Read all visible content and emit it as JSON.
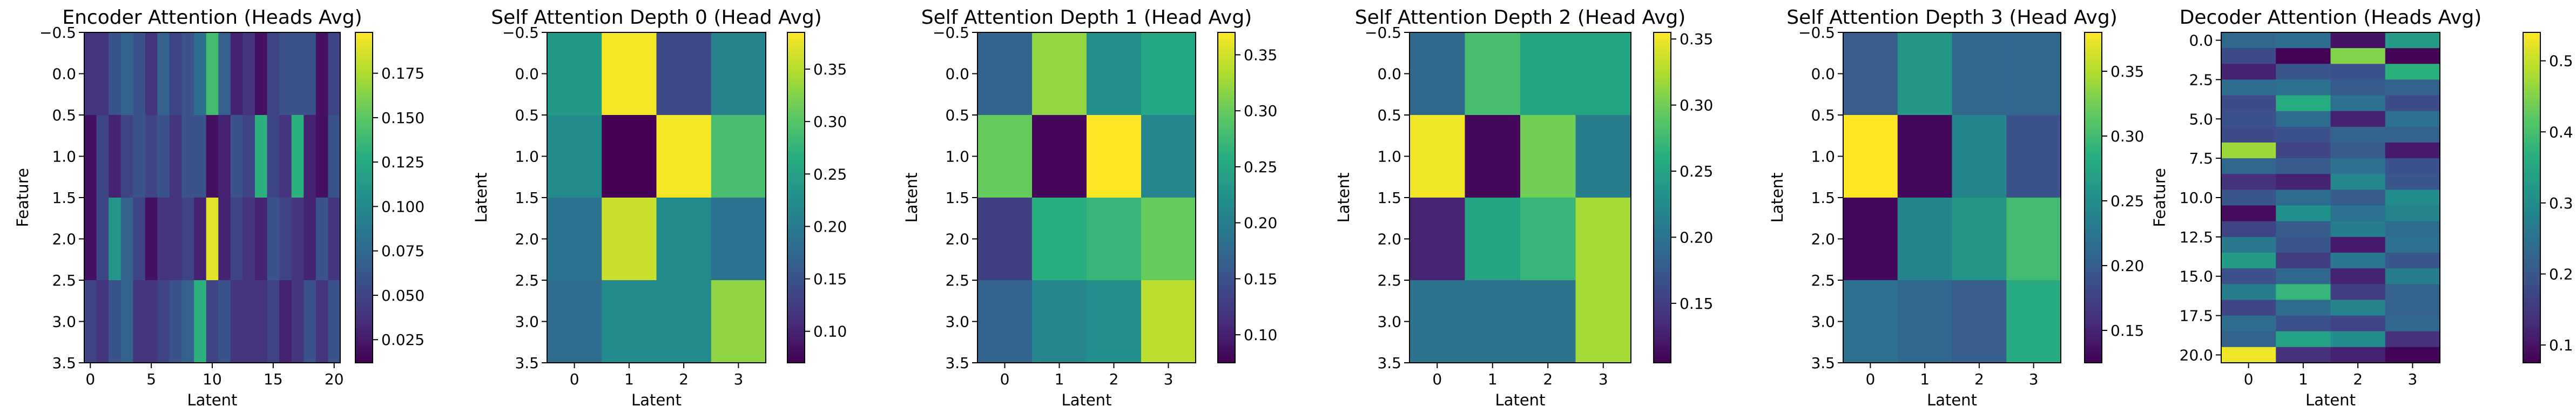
{
  "colormap": "viridis",
  "chart_data": [
    {
      "type": "heatmap",
      "title": "Encoder Attention (Heads Avg)",
      "xlabel": "Latent",
      "ylabel": "Feature",
      "x_extent": [
        -0.5,
        20.5
      ],
      "y_extent": [
        -0.5,
        3.5
      ],
      "x_ticks": [
        0,
        5,
        10,
        15,
        20
      ],
      "x_tick_labels": [
        "0",
        "5",
        "10",
        "15",
        "20"
      ],
      "y_ticks": [
        -0.5,
        0.0,
        0.5,
        1.0,
        1.5,
        2.0,
        2.5,
        3.0,
        3.5
      ],
      "y_tick_labels": [
        "−0.5",
        "0.0",
        "0.5",
        "1.0",
        "1.5",
        "2.0",
        "2.5",
        "3.0",
        "3.5"
      ],
      "colorbar_range": [
        0.012,
        0.198
      ],
      "colorbar_ticks": [
        0.025,
        0.05,
        0.075,
        0.1,
        0.125,
        0.15,
        0.175
      ],
      "colorbar_tick_labels": [
        "0.025",
        "0.050",
        "0.075",
        "0.100",
        "0.125",
        "0.150",
        "0.175"
      ],
      "values": [
        [
          0.04,
          0.04,
          0.06,
          0.07,
          0.06,
          0.04,
          0.07,
          0.05,
          0.06,
          0.08,
          0.14,
          0.07,
          0.03,
          0.04,
          0.02,
          0.05,
          0.06,
          0.06,
          0.06,
          0.02,
          0.05
        ],
        [
          0.02,
          0.05,
          0.03,
          0.05,
          0.06,
          0.05,
          0.06,
          0.04,
          0.06,
          0.06,
          0.02,
          0.03,
          0.06,
          0.05,
          0.13,
          0.05,
          0.04,
          0.13,
          0.03,
          0.02,
          0.06
        ],
        [
          0.02,
          0.05,
          0.11,
          0.07,
          0.05,
          0.02,
          0.04,
          0.04,
          0.05,
          0.03,
          0.19,
          0.03,
          0.05,
          0.04,
          0.03,
          0.06,
          0.05,
          0.04,
          0.03,
          0.06,
          0.04
        ],
        [
          0.05,
          0.04,
          0.06,
          0.07,
          0.04,
          0.04,
          0.05,
          0.06,
          0.07,
          0.13,
          0.05,
          0.06,
          0.04,
          0.04,
          0.04,
          0.05,
          0.03,
          0.04,
          0.06,
          0.04,
          0.06
        ]
      ]
    },
    {
      "type": "heatmap",
      "title": "Self Attention Depth 0 (Head Avg)",
      "xlabel": "Latent",
      "ylabel": "Latent",
      "x_extent": [
        -0.5,
        3.5
      ],
      "y_extent": [
        -0.5,
        3.5
      ],
      "x_ticks": [
        0,
        1,
        2,
        3
      ],
      "x_tick_labels": [
        "0",
        "1",
        "2",
        "3"
      ],
      "y_ticks": [
        -0.5,
        0.0,
        0.5,
        1.0,
        1.5,
        2.0,
        2.5,
        3.0,
        3.5
      ],
      "y_tick_labels": [
        "−0.5",
        "0.0",
        "0.5",
        "1.0",
        "1.5",
        "2.0",
        "2.5",
        "3.0",
        "3.5"
      ],
      "colorbar_range": [
        0.07,
        0.385
      ],
      "colorbar_ticks": [
        0.1,
        0.15,
        0.2,
        0.25,
        0.3,
        0.35
      ],
      "colorbar_tick_labels": [
        "0.10",
        "0.15",
        "0.20",
        "0.25",
        "0.30",
        "0.35"
      ],
      "values": [
        [
          0.24,
          0.38,
          0.14,
          0.21
        ],
        [
          0.22,
          0.07,
          0.38,
          0.29
        ],
        [
          0.19,
          0.36,
          0.22,
          0.19
        ],
        [
          0.18,
          0.22,
          0.22,
          0.33
        ]
      ]
    },
    {
      "type": "heatmap",
      "title": "Self Attention Depth 1 (Head Avg)",
      "xlabel": "Latent",
      "ylabel": "Latent",
      "x_extent": [
        -0.5,
        3.5
      ],
      "y_extent": [
        -0.5,
        3.5
      ],
      "x_ticks": [
        0,
        1,
        2,
        3
      ],
      "x_tick_labels": [
        "0",
        "1",
        "2",
        "3"
      ],
      "y_ticks": [
        -0.5,
        0.0,
        0.5,
        1.0,
        1.5,
        2.0,
        2.5,
        3.0,
        3.5
      ],
      "y_tick_labels": [
        "−0.5",
        "0.0",
        "0.5",
        "1.0",
        "1.5",
        "2.0",
        "2.5",
        "3.0",
        "3.5"
      ],
      "colorbar_range": [
        0.075,
        0.37
      ],
      "colorbar_ticks": [
        0.1,
        0.15,
        0.2,
        0.25,
        0.3,
        0.35
      ],
      "colorbar_tick_labels": [
        "0.10",
        "0.15",
        "0.20",
        "0.25",
        "0.30",
        "0.35"
      ],
      "values": [
        [
          0.17,
          0.32,
          0.22,
          0.25
        ],
        [
          0.3,
          0.08,
          0.37,
          0.21
        ],
        [
          0.13,
          0.26,
          0.27,
          0.3
        ],
        [
          0.17,
          0.21,
          0.22,
          0.34
        ]
      ]
    },
    {
      "type": "heatmap",
      "title": "Self Attention Depth 2 (Head Avg)",
      "xlabel": "Latent",
      "ylabel": "Latent",
      "x_extent": [
        -0.5,
        3.5
      ],
      "y_extent": [
        -0.5,
        3.5
      ],
      "x_ticks": [
        0,
        1,
        2,
        3
      ],
      "x_tick_labels": [
        "0",
        "1",
        "2",
        "3"
      ],
      "y_ticks": [
        -0.5,
        0.0,
        0.5,
        1.0,
        1.5,
        2.0,
        2.5,
        3.0,
        3.5
      ],
      "y_tick_labels": [
        "−0.5",
        "0.0",
        "0.5",
        "1.0",
        "1.5",
        "2.0",
        "2.5",
        "3.0",
        "3.5"
      ],
      "colorbar_range": [
        0.105,
        0.355
      ],
      "colorbar_ticks": [
        0.15,
        0.2,
        0.25,
        0.3,
        0.35
      ],
      "colorbar_tick_labels": [
        "0.15",
        "0.20",
        "0.25",
        "0.30",
        "0.35"
      ],
      "values": [
        [
          0.19,
          0.28,
          0.25,
          0.25
        ],
        [
          0.35,
          0.11,
          0.3,
          0.21
        ],
        [
          0.13,
          0.25,
          0.27,
          0.32
        ],
        [
          0.2,
          0.2,
          0.2,
          0.32
        ]
      ]
    },
    {
      "type": "heatmap",
      "title": "Self Attention Depth 3 (Head Avg)",
      "xlabel": "Latent",
      "ylabel": "Latent",
      "x_extent": [
        -0.5,
        3.5
      ],
      "y_extent": [
        -0.5,
        3.5
      ],
      "x_ticks": [
        0,
        1,
        2,
        3
      ],
      "x_tick_labels": [
        "0",
        "1",
        "2",
        "3"
      ],
      "y_ticks": [
        -0.5,
        0.0,
        0.5,
        1.0,
        1.5,
        2.0,
        2.5,
        3.0,
        3.5
      ],
      "y_tick_labels": [
        "−0.5",
        "0.0",
        "0.5",
        "1.0",
        "1.5",
        "2.0",
        "2.5",
        "3.0",
        "3.5"
      ],
      "colorbar_range": [
        0.125,
        0.38
      ],
      "colorbar_ticks": [
        0.15,
        0.2,
        0.25,
        0.3,
        0.35
      ],
      "colorbar_tick_labels": [
        "0.15",
        "0.20",
        "0.25",
        "0.30",
        "0.35"
      ],
      "values": [
        [
          0.2,
          0.26,
          0.21,
          0.21
        ],
        [
          0.38,
          0.13,
          0.24,
          0.19
        ],
        [
          0.13,
          0.24,
          0.26,
          0.3
        ],
        [
          0.22,
          0.21,
          0.2,
          0.28
        ]
      ]
    },
    {
      "type": "heatmap",
      "title": "Decoder Attention (Heads Avg)",
      "xlabel": "Latent",
      "ylabel": "Feature",
      "x_extent": [
        -0.5,
        3.5
      ],
      "y_extent": [
        -0.5,
        20.5
      ],
      "x_ticks": [
        0,
        1,
        2,
        3
      ],
      "x_tick_labels": [
        "0",
        "1",
        "2",
        "3"
      ],
      "y_ticks": [
        0.0,
        2.5,
        5.0,
        7.5,
        10.0,
        12.5,
        15.0,
        17.5,
        20.0
      ],
      "y_tick_labels": [
        "0.0",
        "2.5",
        "5.0",
        "7.5",
        "10.0",
        "12.5",
        "15.0",
        "17.5",
        "20.0"
      ],
      "colorbar_range": [
        0.075,
        0.54
      ],
      "colorbar_ticks": [
        0.1,
        0.2,
        0.3,
        0.4,
        0.5
      ],
      "colorbar_tick_labels": [
        "0.1",
        "0.2",
        "0.3",
        "0.4",
        "0.5"
      ],
      "values": [
        [
          0.23,
          0.24,
          0.1,
          0.33
        ],
        [
          0.18,
          0.08,
          0.45,
          0.08
        ],
        [
          0.12,
          0.2,
          0.19,
          0.37
        ],
        [
          0.24,
          0.25,
          0.21,
          0.22
        ],
        [
          0.18,
          0.36,
          0.25,
          0.18
        ],
        [
          0.19,
          0.24,
          0.12,
          0.25
        ],
        [
          0.18,
          0.19,
          0.22,
          0.22
        ],
        [
          0.47,
          0.17,
          0.21,
          0.11
        ],
        [
          0.23,
          0.21,
          0.25,
          0.19
        ],
        [
          0.14,
          0.12,
          0.29,
          0.2
        ],
        [
          0.2,
          0.24,
          0.21,
          0.3
        ],
        [
          0.09,
          0.31,
          0.25,
          0.28
        ],
        [
          0.17,
          0.21,
          0.27,
          0.24
        ],
        [
          0.26,
          0.2,
          0.11,
          0.25
        ],
        [
          0.33,
          0.16,
          0.26,
          0.2
        ],
        [
          0.19,
          0.23,
          0.12,
          0.27
        ],
        [
          0.27,
          0.38,
          0.16,
          0.22
        ],
        [
          0.17,
          0.24,
          0.28,
          0.22
        ],
        [
          0.24,
          0.19,
          0.17,
          0.23
        ],
        [
          0.22,
          0.34,
          0.3,
          0.14
        ],
        [
          0.53,
          0.14,
          0.12,
          0.08
        ]
      ]
    }
  ]
}
